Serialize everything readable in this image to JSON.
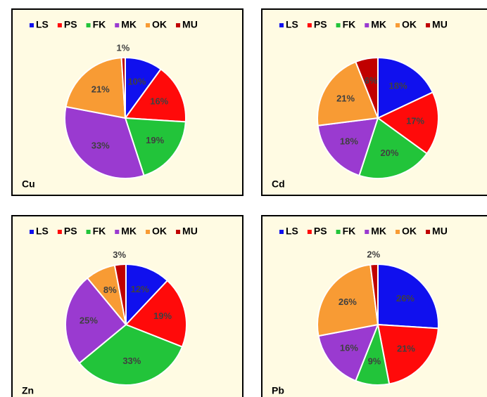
{
  "chart_data": [
    {
      "type": "pie",
      "label": "Cu",
      "categories": [
        "LS",
        "PS",
        "FK",
        "MK",
        "OK",
        "MU"
      ],
      "values": [
        10,
        16,
        19,
        33,
        21,
        1
      ],
      "value_labels": [
        "10%",
        "16%",
        "19%",
        "33%",
        "21%",
        "1%"
      ],
      "colors": [
        "#1010ee",
        "#ff0a0a",
        "#22c43a",
        "#9a3ad0",
        "#f89b34",
        "#c00000"
      ]
    },
    {
      "type": "pie",
      "label": "Cd",
      "categories": [
        "LS",
        "PS",
        "FK",
        "MK",
        "OK",
        "MU"
      ],
      "values": [
        18,
        17,
        20,
        18,
        21,
        6
      ],
      "value_labels": [
        "18%",
        "17%",
        "20%",
        "18%",
        "21%",
        "6%"
      ],
      "colors": [
        "#1010ee",
        "#ff0a0a",
        "#22c43a",
        "#9a3ad0",
        "#f89b34",
        "#c00000"
      ]
    },
    {
      "type": "pie",
      "label": "Zn",
      "categories": [
        "LS",
        "PS",
        "FK",
        "MK",
        "OK",
        "MU"
      ],
      "values": [
        12,
        19,
        33,
        25,
        8,
        3
      ],
      "value_labels": [
        "12%",
        "19%",
        "33%",
        "25%",
        "8%",
        "3%"
      ],
      "colors": [
        "#1010ee",
        "#ff0a0a",
        "#22c43a",
        "#9a3ad0",
        "#f89b34",
        "#c00000"
      ]
    },
    {
      "type": "pie",
      "label": "Pb",
      "categories": [
        "LS",
        "PS",
        "FK",
        "MK",
        "OK",
        "MU"
      ],
      "values": [
        26,
        21,
        9,
        16,
        26,
        2
      ],
      "value_labels": [
        "26%",
        "21%",
        "9%",
        "16%",
        "26%",
        "2%"
      ],
      "colors": [
        "#1010ee",
        "#ff0a0a",
        "#22c43a",
        "#9a3ad0",
        "#f89b34",
        "#c00000"
      ]
    }
  ]
}
